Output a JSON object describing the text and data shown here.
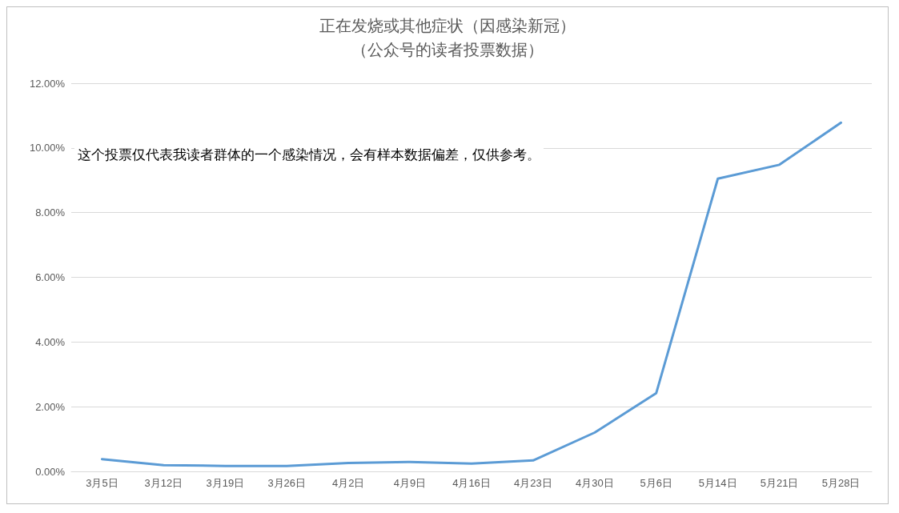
{
  "chart_data": {
    "type": "line",
    "title": "正在发烧或其他症状（因感染新冠）",
    "subtitle": "（公众号的读者投票数据）",
    "annotations": [
      "这个投票仅代表我读者群体的一个感染情况，会有样本数据偏差，仅供参考。"
    ],
    "categories": [
      "3月5日",
      "3月12日",
      "3月19日",
      "3月26日",
      "4月2日",
      "4月9日",
      "4月16日",
      "4月23日",
      "4月30日",
      "5月6日",
      "5月14日",
      "5月21日",
      "5月28日"
    ],
    "series": [
      {
        "color": "#5b9bd5",
        "values": [
          0.38,
          0.19,
          0.17,
          0.17,
          0.26,
          0.29,
          0.24,
          0.34,
          1.2,
          2.42,
          9.05,
          9.48,
          10.78
        ]
      }
    ],
    "ylim": [
      0,
      12
    ],
    "yticks": [
      {
        "value": 0,
        "label": "0.00%"
      },
      {
        "value": 2,
        "label": "2.00%"
      },
      {
        "value": 4,
        "label": "4.00%"
      },
      {
        "value": 6,
        "label": "6.00%"
      },
      {
        "value": 8,
        "label": "8.00%"
      },
      {
        "value": 10,
        "label": "10.00%"
      },
      {
        "value": 12,
        "label": "12.00%"
      }
    ],
    "grid": "y",
    "marker": "none",
    "line_style": "solid"
  }
}
